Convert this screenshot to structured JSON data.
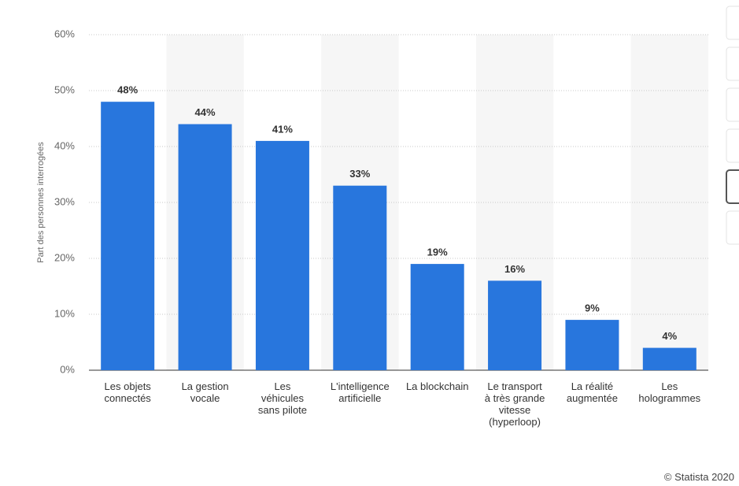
{
  "chart_data": {
    "type": "bar",
    "y_axis_label": "Part des personnes interrogées",
    "categories": [
      "Les objets connectés",
      "La gestion vocale",
      "Les véhicules sans pilote",
      "L'intelligence artificielle",
      "La blockchain",
      "Le transport à très grande vitesse (hyperloop)",
      "La réalité augmentée",
      "Les hologrammes"
    ],
    "values": [
      48,
      44,
      41,
      33,
      19,
      16,
      9,
      4
    ],
    "value_labels": [
      "48%",
      "44%",
      "41%",
      "33%",
      "19%",
      "16%",
      "9%",
      "4%"
    ],
    "color": "#2876dd",
    "ylim": [
      0,
      60
    ],
    "yticks": [
      {
        "value": 0,
        "label": "0%"
      },
      {
        "value": 10,
        "label": "10%"
      },
      {
        "value": 20,
        "label": "20%"
      },
      {
        "value": 30,
        "label": "30%"
      },
      {
        "value": 40,
        "label": "40%"
      },
      {
        "value": 50,
        "label": "50%"
      },
      {
        "value": 60,
        "label": "60%"
      }
    ],
    "grid": true,
    "source": "© Statista 2020"
  }
}
